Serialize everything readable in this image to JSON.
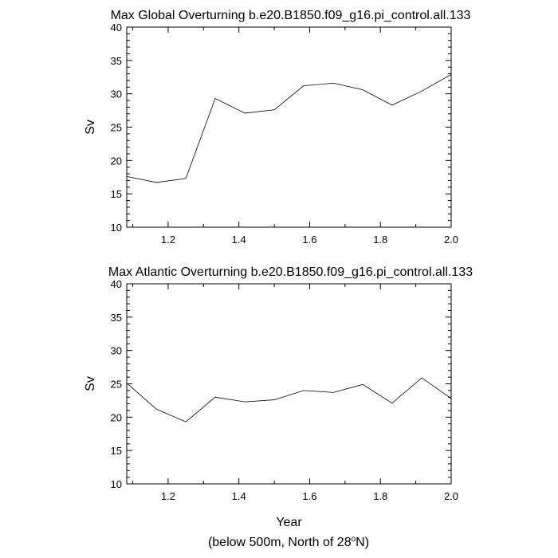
{
  "chart_data": [
    {
      "type": "line",
      "title": "Max Global Overturning b.e20.B1850.f09_g16.pi_control.all.133",
      "ylabel": "Sv",
      "xlabel": "",
      "xlim": [
        1.083,
        2.0
      ],
      "ylim": [
        10,
        40
      ],
      "x_ticks": [
        "1.2",
        "1.4",
        "1.6",
        "1.8",
        "2.0"
      ],
      "y_ticks": [
        "10",
        "15",
        "20",
        "25",
        "30",
        "35",
        "40"
      ],
      "x": [
        1.083,
        1.167,
        1.25,
        1.333,
        1.417,
        1.5,
        1.583,
        1.667,
        1.75,
        1.833,
        1.917,
        2.0
      ],
      "series": [
        {
          "name": "Max Global Overturning",
          "values": [
            17.6,
            16.7,
            17.3,
            29.3,
            27.1,
            27.6,
            31.2,
            31.6,
            30.6,
            28.3,
            30.4,
            32.9
          ]
        }
      ]
    },
    {
      "type": "line",
      "title": "Max Atlantic Overturning b.e20.B1850.f09_g16.pi_control.all.133",
      "ylabel": "Sv",
      "xlabel": "Year",
      "xlim": [
        1.083,
        2.0
      ],
      "ylim": [
        10,
        40
      ],
      "x_ticks": [
        "1.2",
        "1.4",
        "1.6",
        "1.8",
        "2.0"
      ],
      "y_ticks": [
        "10",
        "15",
        "20",
        "25",
        "30",
        "35",
        "40"
      ],
      "x": [
        1.083,
        1.167,
        1.25,
        1.333,
        1.417,
        1.5,
        1.583,
        1.667,
        1.75,
        1.833,
        1.917,
        2.0
      ],
      "series": [
        {
          "name": "Max Atlantic Overturning",
          "values": [
            25.1,
            21.2,
            19.3,
            23.0,
            22.3,
            22.6,
            24.0,
            23.7,
            24.9,
            22.1,
            25.9,
            22.8
          ]
        }
      ]
    }
  ],
  "footnote": {
    "prefix": "(below 500m, North of 28",
    "superscript": "o",
    "suffix": "N)"
  }
}
